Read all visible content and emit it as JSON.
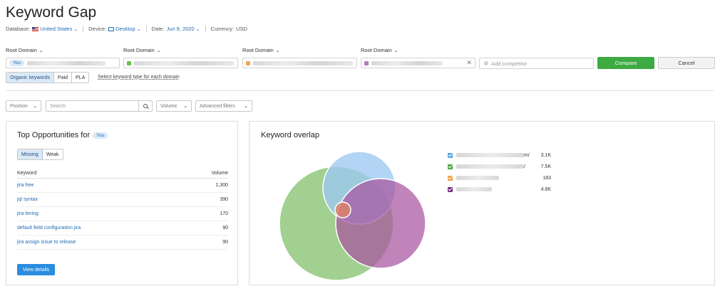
{
  "page": {
    "title": "Keyword Gap"
  },
  "meta": {
    "database_label": "Database:",
    "database_value": "United States",
    "device_label": "Device:",
    "device_value": "Desktop",
    "date_label": "Date:",
    "date_value": "Jun 9, 2020",
    "currency_label": "Currency:",
    "currency_value": "USD"
  },
  "domains": [
    {
      "label": "Root Domain",
      "badge": "You",
      "color": ""
    },
    {
      "label": "Root Domain",
      "badge": "",
      "color": "#6cbf4f"
    },
    {
      "label": "Root Domain",
      "badge": "",
      "color": "#f0a45a"
    },
    {
      "label": "Root Domain",
      "badge": "",
      "color": "#b57bc0"
    }
  ],
  "add_competitor": {
    "placeholder": "Add competitor"
  },
  "buttons": {
    "compare": "Compare",
    "cancel": "Cancel",
    "view_details": "View details"
  },
  "keyword_type": {
    "options": [
      "Organic keywords",
      "Paid",
      "PLA"
    ],
    "selected": "Organic keywords",
    "hint": "Select keyword type for each domain"
  },
  "filters": {
    "position": "Position",
    "search_placeholder": "Search",
    "volume": "Volume",
    "advanced": "Advanced filters"
  },
  "opportunities": {
    "title": "Top Opportunities for",
    "badge": "You",
    "tabs": [
      "Missing",
      "Weak"
    ],
    "selected_tab": "Missing",
    "columns": {
      "keyword": "Keyword",
      "volume": "Volume"
    },
    "rows": [
      {
        "keyword": "jira free",
        "volume": "1,300"
      },
      {
        "keyword": "jql syntax",
        "volume": "390"
      },
      {
        "keyword": "jira timing",
        "volume": "170"
      },
      {
        "keyword": "default field configuration jira",
        "volume": "90"
      },
      {
        "keyword": "jira assign issue to release",
        "volume": "90"
      }
    ]
  },
  "overlap": {
    "title": "Keyword overlap",
    "legend": [
      {
        "suffix": "m/",
        "value": "3.1K",
        "color": "#5aa6e0"
      },
      {
        "suffix": "/",
        "value": "7.5K",
        "color": "#48a83e"
      },
      {
        "suffix": "",
        "value": "183",
        "color": "#f0a04b"
      },
      {
        "suffix": "",
        "value": "4.8K",
        "color": "#7a2e86"
      }
    ]
  }
}
